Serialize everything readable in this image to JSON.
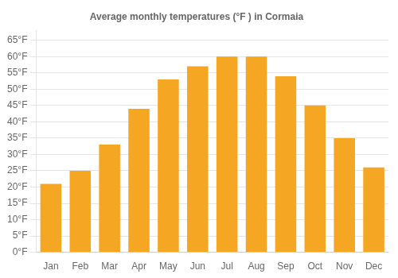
{
  "chart_data": {
    "type": "bar",
    "title": "Average monthly temperatures (°F ) in Cormaia",
    "categories": [
      "Jan",
      "Feb",
      "Mar",
      "Apr",
      "May",
      "Jun",
      "Jul",
      "Aug",
      "Sep",
      "Oct",
      "Nov",
      "Dec"
    ],
    "values": [
      21,
      25,
      33,
      44,
      53,
      57,
      60,
      60,
      54,
      45,
      35,
      26
    ],
    "color": "#F5A623",
    "ylim": [
      0,
      68
    ],
    "yticks": [
      {
        "value": 0,
        "label": "0°F"
      },
      {
        "value": 5,
        "label": "5°F"
      },
      {
        "value": 10,
        "label": "10°F"
      },
      {
        "value": 15,
        "label": "15°F"
      },
      {
        "value": 20,
        "label": "20°F"
      },
      {
        "value": 25,
        "label": "25°F"
      },
      {
        "value": 30,
        "label": "30°F"
      },
      {
        "value": 35,
        "label": "35°F"
      },
      {
        "value": 40,
        "label": "40°F"
      },
      {
        "value": 45,
        "label": "45°F"
      },
      {
        "value": 50,
        "label": "50°F"
      },
      {
        "value": 55,
        "label": "55°F"
      },
      {
        "value": 60,
        "label": "60°F"
      },
      {
        "value": 65,
        "label": "65°F"
      }
    ],
    "grid": true
  }
}
